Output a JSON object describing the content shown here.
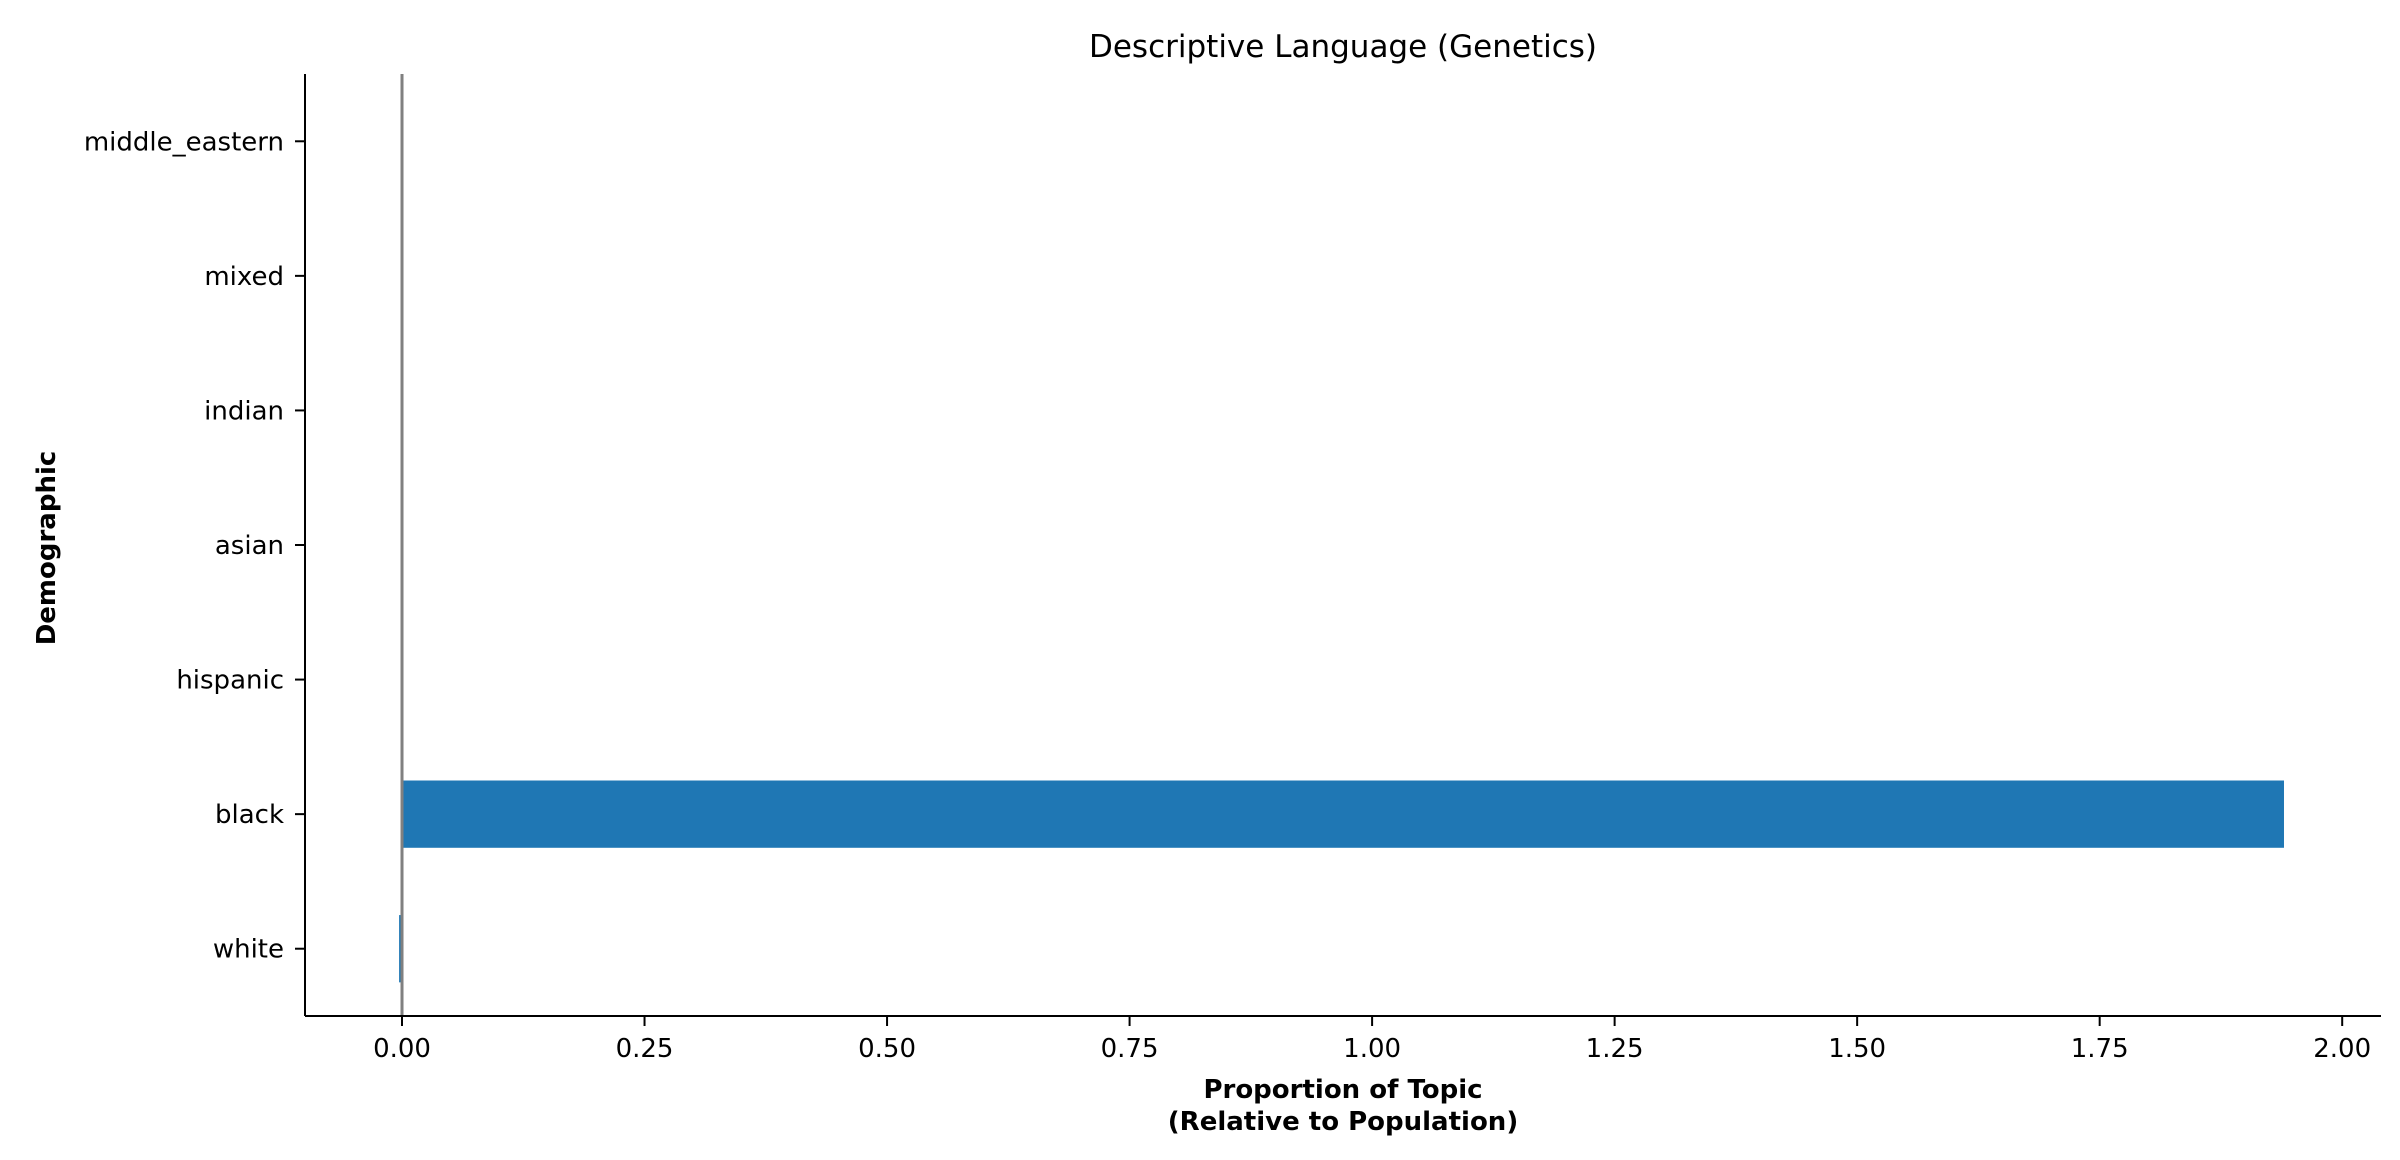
{
  "chart_data": {
    "type": "bar",
    "orientation": "horizontal",
    "title": "Descriptive Language (Genetics)",
    "xlabel_lines": [
      "Proportion of Topic",
      "(Relative to Population)"
    ],
    "ylabel": "Demographic",
    "categories": [
      "white",
      "black",
      "hispanic",
      "asian",
      "indian",
      "mixed",
      "middle_eastern"
    ],
    "values": [
      -0.003,
      1.94,
      0,
      0,
      0,
      0,
      0
    ],
    "xlim": [
      -0.1,
      2.04
    ],
    "xticks": [
      0.0,
      0.25,
      0.5,
      0.75,
      1.0,
      1.25,
      1.5,
      1.75,
      2.0
    ],
    "xtick_labels": [
      "0.00",
      "0.25",
      "0.50",
      "0.75",
      "1.00",
      "1.25",
      "1.50",
      "1.75",
      "2.00"
    ],
    "reference_line_x": 0,
    "grid": false,
    "legend": "none",
    "colors": {
      "bar": "#1f77b4",
      "reference_line": "#808080",
      "axis": "#000000"
    }
  }
}
